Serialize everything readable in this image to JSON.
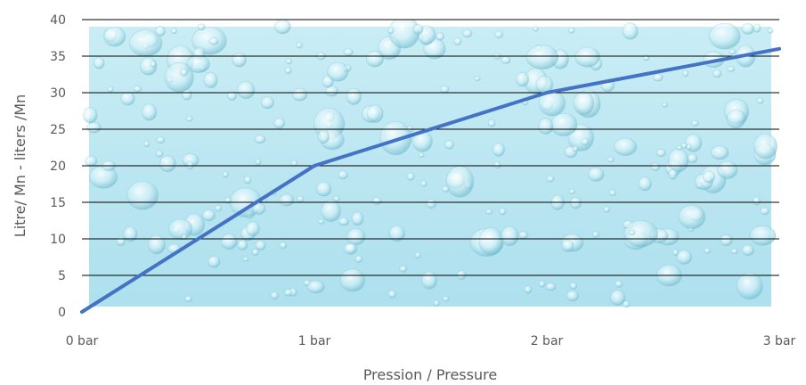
{
  "chart_data": {
    "type": "line",
    "title": "",
    "xlabel": "Pression / Pressure",
    "ylabel": "Litre/ Mn - liters /Mn",
    "x_categories": [
      "0 bar",
      "1 bar",
      "2 bar",
      "3 bar"
    ],
    "x": [
      0,
      1,
      2,
      3
    ],
    "xlim": [
      0,
      3
    ],
    "ylim": [
      0,
      40
    ],
    "y_ticks": [
      0,
      5,
      10,
      15,
      20,
      25,
      30,
      35,
      40
    ],
    "grid": true,
    "legend": "none",
    "background": "water droplets texture",
    "series": [
      {
        "values": [
          0,
          20,
          30,
          36
        ],
        "color": "#4472c4"
      }
    ],
    "colors": {
      "line": "#4472c4",
      "grid": "#000000",
      "plot_bg": "#bfe8f2",
      "text": "#595959"
    }
  }
}
